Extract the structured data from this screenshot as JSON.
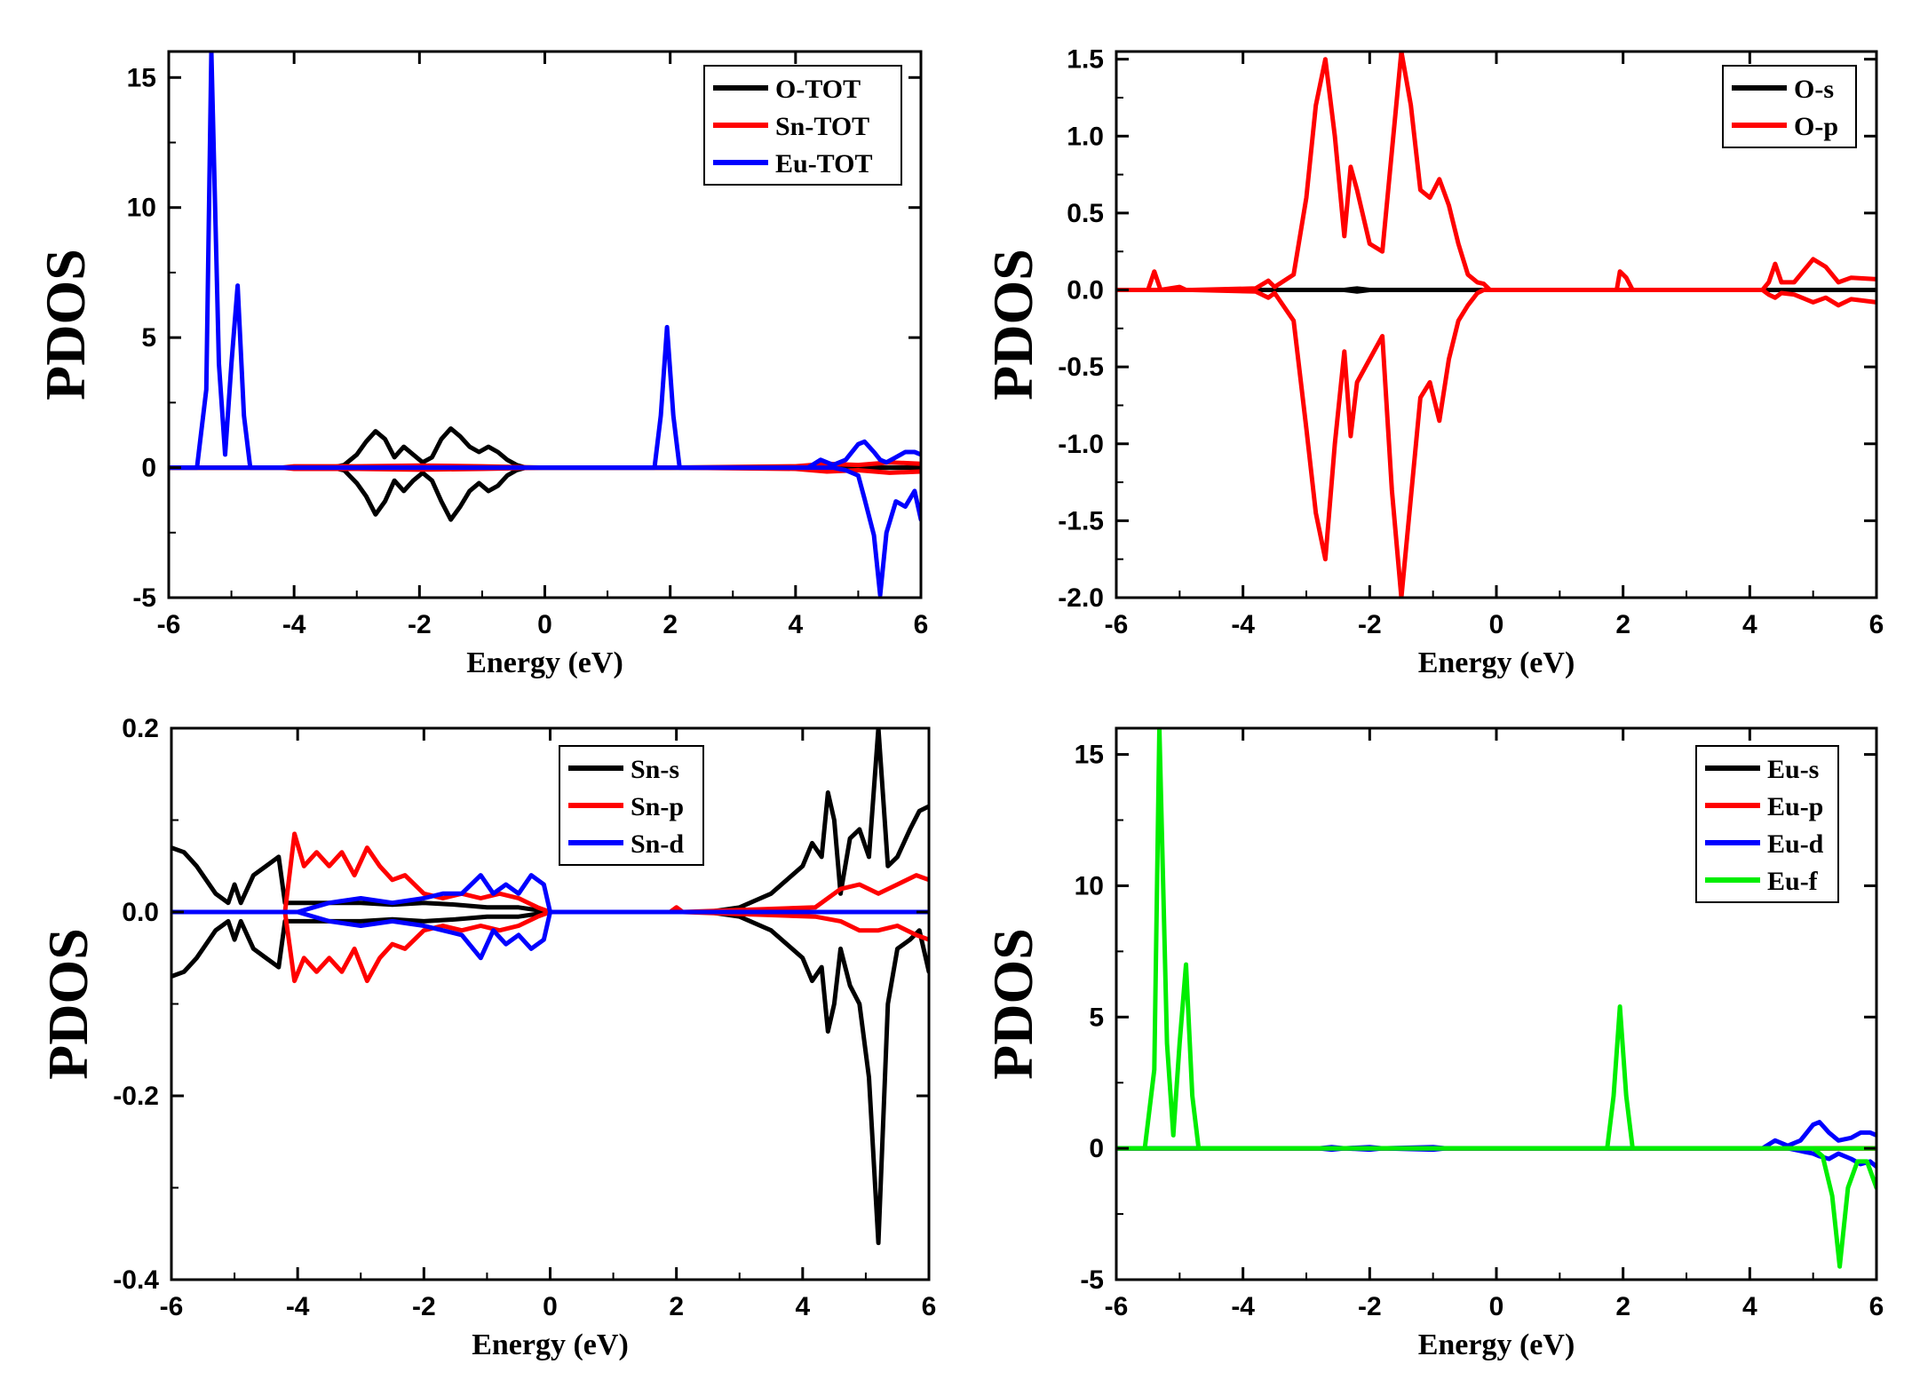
{
  "chart_data": [
    {
      "type": "line",
      "title": "",
      "xlabel": "Energy (eV)",
      "ylabel": "PDOS",
      "xlim": [
        -6,
        6
      ],
      "ylim": [
        -5,
        16
      ],
      "xticks": [
        -6,
        -4,
        -2,
        0,
        2,
        4,
        6
      ],
      "yticks": [
        -5,
        0,
        5,
        10,
        15
      ],
      "ytick_labels": [
        "-5",
        "0",
        "5",
        "10",
        "15"
      ],
      "legend_position": "top-right",
      "series": [
        {
          "name": "O-TOT",
          "color": "#000000",
          "x": [
            -6,
            -3.4,
            -3.2,
            -3.0,
            -2.85,
            -2.7,
            -2.55,
            -2.4,
            -2.25,
            -2.1,
            -1.95,
            -1.8,
            -1.65,
            -1.5,
            -1.35,
            -1.2,
            -1.05,
            -0.9,
            -0.75,
            -0.6,
            -0.45,
            -0.3,
            6
          ],
          "up": [
            0,
            0,
            0.1,
            0.5,
            1.0,
            1.4,
            1.1,
            0.4,
            0.8,
            0.5,
            0.2,
            0.4,
            1.1,
            1.5,
            1.2,
            0.8,
            0.6,
            0.8,
            0.6,
            0.3,
            0.1,
            0,
            0
          ],
          "down": [
            0,
            0,
            -0.1,
            -0.6,
            -1.1,
            -1.8,
            -1.3,
            -0.5,
            -0.9,
            -0.5,
            -0.2,
            -0.5,
            -1.3,
            -2.0,
            -1.5,
            -0.9,
            -0.6,
            -0.9,
            -0.7,
            -0.3,
            -0.1,
            0,
            0
          ]
        },
        {
          "name": "Sn-TOT",
          "color": "#ff0000",
          "x": [
            -6,
            -4.2,
            -4.0,
            -3.0,
            -2.0,
            -1.0,
            0,
            2,
            4,
            4.5,
            5.0,
            5.5,
            6
          ],
          "up": [
            0,
            0,
            0.05,
            0.05,
            0.08,
            0.05,
            0,
            0,
            0.05,
            0.15,
            0.1,
            0.2,
            0.15
          ],
          "down": [
            0,
            0,
            -0.05,
            -0.05,
            -0.08,
            -0.05,
            0,
            0,
            -0.05,
            -0.15,
            -0.1,
            -0.2,
            -0.15
          ]
        },
        {
          "name": "Eu-TOT",
          "color": "#0000ff",
          "x": [
            -6,
            -5.55,
            -5.4,
            -5.32,
            -5.2,
            -5.1,
            -5.0,
            -4.9,
            -4.8,
            -4.7,
            1.75,
            1.85,
            1.95,
            2.05,
            2.15,
            4.2,
            4.4,
            4.6,
            4.8,
            5.0,
            5.1,
            5.25,
            5.35,
            5.45,
            5.6,
            5.75,
            5.9,
            6
          ],
          "up": [
            0,
            0,
            3,
            16,
            4,
            0.5,
            4,
            7,
            2,
            0,
            0,
            2,
            5.4,
            2,
            0,
            0,
            0.3,
            0.1,
            0.3,
            0.9,
            1.0,
            0.6,
            0.3,
            0.2,
            0.4,
            0.6,
            0.6,
            0.5
          ],
          "down": [
            0,
            0,
            0,
            0,
            0,
            0,
            0,
            0,
            0,
            0,
            0,
            0,
            0,
            0,
            0,
            0,
            0,
            0,
            -0.1,
            -0.3,
            -1.2,
            -2.6,
            -4.9,
            -2.5,
            -1.3,
            -1.5,
            -0.9,
            -2.0
          ]
        }
      ]
    },
    {
      "type": "line",
      "title": "",
      "xlabel": "Energy (eV)",
      "ylabel": "PDOS",
      "xlim": [
        -6,
        6
      ],
      "ylim": [
        -2.0,
        1.55
      ],
      "xticks": [
        -6,
        -4,
        -2,
        0,
        2,
        4,
        6
      ],
      "yticks": [
        -2.0,
        -1.5,
        -1.0,
        -0.5,
        0.0,
        0.5,
        1.0,
        1.5
      ],
      "ytick_labels": [
        "-2.0",
        "-1.5",
        "-1.0",
        "-0.5",
        "0.0",
        "0.5",
        "1.0",
        "1.5"
      ],
      "legend_position": "top-right",
      "series": [
        {
          "name": "O-s",
          "color": "#000000",
          "x": [
            -6,
            -2.4,
            -2.2,
            -2.0,
            6
          ],
          "up": [
            0,
            0,
            0.01,
            0,
            0
          ],
          "down": [
            0,
            0,
            -0.01,
            0,
            0
          ]
        },
        {
          "name": "O-p",
          "color": "#ff0000",
          "x": [
            -6,
            -5.5,
            -5.4,
            -5.3,
            -5.0,
            -4.9,
            -4.8,
            -3.8,
            -3.6,
            -3.5,
            -3.2,
            -3.0,
            -2.85,
            -2.7,
            -2.55,
            -2.4,
            -2.3,
            -2.2,
            -2.0,
            -1.8,
            -1.65,
            -1.5,
            -1.35,
            -1.2,
            -1.05,
            -0.9,
            -0.75,
            -0.6,
            -0.45,
            -0.3,
            -0.2,
            -0.1,
            0,
            1.9,
            1.95,
            2.05,
            2.15,
            4.2,
            4.3,
            4.4,
            4.5,
            4.7,
            5.0,
            5.2,
            5.4,
            5.6,
            6
          ],
          "up": [
            0,
            0,
            0.12,
            0,
            0.02,
            0,
            0,
            0.01,
            0.06,
            0.02,
            0.1,
            0.6,
            1.2,
            1.5,
            1.0,
            0.35,
            0.8,
            0.65,
            0.3,
            0.25,
            0.9,
            1.55,
            1.2,
            0.65,
            0.6,
            0.72,
            0.55,
            0.3,
            0.1,
            0.05,
            0.04,
            0,
            0,
            0,
            0.12,
            0.08,
            0,
            0,
            0.05,
            0.17,
            0.05,
            0.05,
            0.2,
            0.15,
            0.05,
            0.08,
            0.07
          ],
          "down": [
            0,
            0,
            0,
            0,
            0,
            0,
            0,
            -0.01,
            -0.05,
            -0.02,
            -0.2,
            -0.9,
            -1.45,
            -1.75,
            -1.0,
            -0.4,
            -0.95,
            -0.6,
            -0.45,
            -0.3,
            -1.3,
            -2.0,
            -1.35,
            -0.7,
            -0.6,
            -0.85,
            -0.45,
            -0.2,
            -0.1,
            -0.02,
            0,
            0,
            0,
            0,
            0,
            0,
            0,
            0,
            -0.03,
            -0.05,
            -0.02,
            -0.03,
            -0.08,
            -0.05,
            -0.1,
            -0.06,
            -0.08
          ]
        }
      ]
    },
    {
      "type": "line",
      "title": "",
      "xlabel": "Energy (eV)",
      "ylabel": "PDOS",
      "xlim": [
        -6,
        6
      ],
      "ylim": [
        -0.4,
        0.2
      ],
      "xticks": [
        -6,
        -4,
        -2,
        0,
        2,
        4,
        6
      ],
      "yticks": [
        -0.4,
        -0.2,
        0.0,
        0.2
      ],
      "ytick_labels": [
        "-0.4",
        "-0.2",
        "0.0",
        "0.2"
      ],
      "legend_position": "top-right",
      "series": [
        {
          "name": "Sn-s",
          "color": "#000000",
          "x": [
            -6,
            -5.8,
            -5.6,
            -5.3,
            -5.1,
            -5.0,
            -4.9,
            -4.7,
            -4.5,
            -4.3,
            -4.2,
            -4.0,
            -3.5,
            -3.0,
            -2.5,
            -2.0,
            -1.5,
            -1.0,
            -0.5,
            0,
            2.5,
            3.0,
            3.5,
            4.0,
            4.15,
            4.3,
            4.4,
            4.5,
            4.6,
            4.75,
            4.9,
            5.05,
            5.2,
            5.35,
            5.5,
            5.7,
            5.85,
            6
          ],
          "up": [
            0.07,
            0.065,
            0.05,
            0.02,
            0.01,
            0.03,
            0.01,
            0.04,
            0.05,
            0.06,
            0.01,
            0.01,
            0.01,
            0.01,
            0.008,
            0.01,
            0.008,
            0.005,
            0.005,
            0,
            0,
            0.005,
            0.02,
            0.05,
            0.075,
            0.06,
            0.13,
            0.1,
            0.02,
            0.08,
            0.09,
            0.06,
            0.2,
            0.05,
            0.06,
            0.09,
            0.11,
            0.115
          ],
          "down": [
            -0.07,
            -0.065,
            -0.05,
            -0.02,
            -0.01,
            -0.03,
            -0.01,
            -0.04,
            -0.05,
            -0.06,
            -0.01,
            -0.01,
            -0.01,
            -0.01,
            -0.008,
            -0.01,
            -0.008,
            -0.005,
            -0.005,
            0,
            0,
            -0.005,
            -0.02,
            -0.05,
            -0.075,
            -0.06,
            -0.13,
            -0.1,
            -0.04,
            -0.08,
            -0.1,
            -0.18,
            -0.36,
            -0.1,
            -0.04,
            -0.03,
            -0.02,
            -0.065
          ]
        },
        {
          "name": "Sn-p",
          "color": "#ff0000",
          "x": [
            -6,
            -4.2,
            -4.05,
            -3.9,
            -3.7,
            -3.5,
            -3.3,
            -3.1,
            -2.9,
            -2.7,
            -2.5,
            -2.3,
            -2.0,
            -1.7,
            -1.4,
            -1.1,
            -0.8,
            -0.5,
            -0.2,
            0,
            1.9,
            2.0,
            2.1,
            4.2,
            4.6,
            4.9,
            5.2,
            5.5,
            5.8,
            6
          ],
          "up": [
            0,
            0,
            0.085,
            0.05,
            0.065,
            0.05,
            0.065,
            0.04,
            0.07,
            0.05,
            0.035,
            0.04,
            0.02,
            0.015,
            0.02,
            0.015,
            0.02,
            0.015,
            0.005,
            0,
            0,
            0.005,
            0,
            0.005,
            0.025,
            0.03,
            0.02,
            0.03,
            0.04,
            0.035
          ],
          "down": [
            0,
            0,
            -0.075,
            -0.05,
            -0.065,
            -0.05,
            -0.065,
            -0.04,
            -0.075,
            -0.05,
            -0.035,
            -0.04,
            -0.02,
            -0.015,
            -0.02,
            -0.015,
            -0.02,
            -0.015,
            -0.005,
            0,
            0,
            0,
            0,
            -0.005,
            -0.01,
            -0.02,
            -0.02,
            -0.015,
            -0.025,
            -0.03
          ]
        },
        {
          "name": "Sn-d",
          "color": "#0000ff",
          "x": [
            -6,
            -4.0,
            -3.5,
            -3.0,
            -2.5,
            -2.0,
            -1.7,
            -1.4,
            -1.1,
            -0.9,
            -0.7,
            -0.5,
            -0.3,
            -0.1,
            0,
            4,
            6
          ],
          "up": [
            0,
            0,
            0.01,
            0.015,
            0.01,
            0.015,
            0.02,
            0.02,
            0.04,
            0.02,
            0.03,
            0.02,
            0.04,
            0.03,
            0,
            0,
            0
          ],
          "down": [
            0,
            0,
            -0.01,
            -0.015,
            -0.01,
            -0.015,
            -0.02,
            -0.025,
            -0.05,
            -0.02,
            -0.035,
            -0.025,
            -0.04,
            -0.03,
            0,
            0,
            0
          ]
        }
      ]
    },
    {
      "type": "line",
      "title": "",
      "xlabel": "Energy (eV)",
      "ylabel": "PDOS",
      "xlim": [
        -6,
        6
      ],
      "ylim": [
        -5,
        16
      ],
      "xticks": [
        -6,
        -4,
        -2,
        0,
        2,
        4,
        6
      ],
      "yticks": [
        -5,
        0,
        5,
        10,
        15
      ],
      "ytick_labels": [
        "-5",
        "0",
        "5",
        "10",
        "15"
      ],
      "legend_position": "top-right",
      "series": [
        {
          "name": "Eu-s",
          "color": "#000000",
          "x": [
            -6,
            6
          ],
          "up": [
            0,
            0
          ],
          "down": [
            0,
            0
          ]
        },
        {
          "name": "Eu-p",
          "color": "#ff0000",
          "x": [
            -6,
            6
          ],
          "up": [
            0,
            0
          ],
          "down": [
            0,
            0
          ]
        },
        {
          "name": "Eu-d",
          "color": "#0000ff",
          "x": [
            -6,
            -2.8,
            -2.6,
            -2.4,
            -2.0,
            -1.8,
            -1.0,
            -0.8,
            4.2,
            4.4,
            4.6,
            4.8,
            5.0,
            5.1,
            5.25,
            5.4,
            5.6,
            5.75,
            5.9,
            6
          ],
          "up": [
            0,
            0,
            0.05,
            0,
            0.05,
            0,
            0.05,
            0,
            0,
            0.3,
            0.1,
            0.3,
            0.9,
            1.0,
            0.6,
            0.3,
            0.4,
            0.6,
            0.6,
            0.5
          ],
          "down": [
            0,
            0,
            -0.05,
            0,
            -0.05,
            0,
            -0.05,
            0,
            0,
            0,
            0,
            -0.1,
            -0.2,
            -0.3,
            -0.4,
            -0.2,
            -0.4,
            -0.6,
            -0.5,
            -0.7
          ]
        },
        {
          "name": "Eu-f",
          "color": "#00ee00",
          "x": [
            -6,
            -5.55,
            -5.4,
            -5.32,
            -5.2,
            -5.1,
            -5.0,
            -4.9,
            -4.8,
            -4.7,
            1.75,
            1.85,
            1.95,
            2.05,
            2.15,
            4.8,
            5.0,
            5.15,
            5.3,
            5.42,
            5.55,
            5.7,
            5.85,
            6
          ],
          "up": [
            0,
            0,
            3,
            16,
            4,
            0.5,
            4,
            7,
            2,
            0,
            0,
            2,
            5.4,
            2,
            0,
            0,
            0,
            0,
            0,
            0,
            0,
            0,
            0,
            0
          ],
          "down": [
            0,
            0,
            0,
            0,
            0,
            0,
            0,
            0,
            0,
            0,
            0,
            0,
            0,
            0,
            0,
            0,
            0,
            -0.3,
            -1.8,
            -4.5,
            -1.5,
            -0.5,
            -0.5,
            -1.5
          ]
        }
      ]
    }
  ]
}
